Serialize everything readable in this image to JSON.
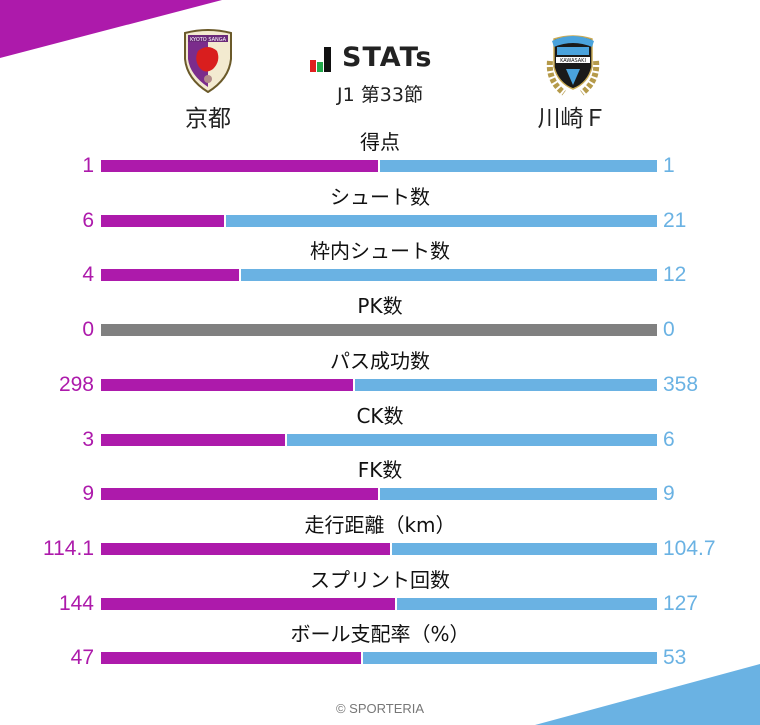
{
  "header": {
    "logo_text": "STATs",
    "matchday": "J1 第33節",
    "home_team": "京都",
    "away_team": "川崎Ｆ"
  },
  "colors": {
    "home": "#ad1aab",
    "away": "#6ab2e3",
    "neutral": "#808080",
    "logo_red": "#e02020",
    "logo_green": "#22a84a",
    "logo_black": "#111111"
  },
  "footer": {
    "copyright": "© SPORTERIA"
  },
  "chart_data": {
    "type": "bar",
    "orientation": "horizontal-stacked-100",
    "title": "STATs J1 第33節",
    "series": [
      {
        "name": "京都",
        "color": "#ad1aab"
      },
      {
        "name": "川崎Ｆ",
        "color": "#6ab2e3"
      }
    ],
    "rows": [
      {
        "label": "得点",
        "home": "1",
        "away": "1",
        "home_val": 1,
        "away_val": 1
      },
      {
        "label": "シュート数",
        "home": "6",
        "away": "21",
        "home_val": 6,
        "away_val": 21
      },
      {
        "label": "枠内シュート数",
        "home": "4",
        "away": "12",
        "home_val": 4,
        "away_val": 12
      },
      {
        "label": "PK数",
        "home": "0",
        "away": "0",
        "home_val": 0,
        "away_val": 0
      },
      {
        "label": "パス成功数",
        "home": "298",
        "away": "358",
        "home_val": 298,
        "away_val": 358
      },
      {
        "label": "CK数",
        "home": "3",
        "away": "6",
        "home_val": 3,
        "away_val": 6
      },
      {
        "label": "FK数",
        "home": "9",
        "away": "9",
        "home_val": 9,
        "away_val": 9
      },
      {
        "label": "走行距離（km）",
        "home": "114.1",
        "away": "104.7",
        "home_val": 114.1,
        "away_val": 104.7
      },
      {
        "label": "スプリント回数",
        "home": "144",
        "away": "127",
        "home_val": 144,
        "away_val": 127
      },
      {
        "label": "ボール支配率（%）",
        "home": "47",
        "away": "53",
        "home_val": 47,
        "away_val": 53
      }
    ]
  }
}
